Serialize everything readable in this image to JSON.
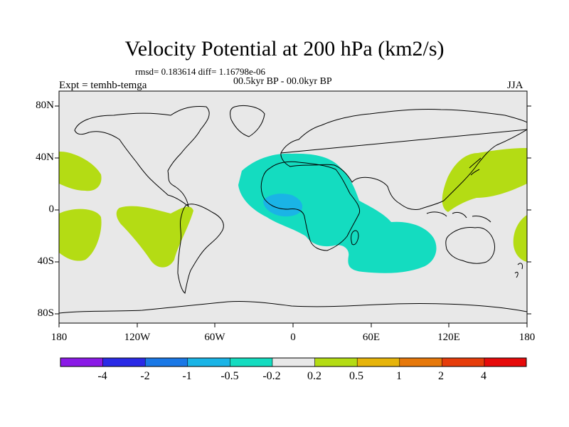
{
  "title": "Velocity Potential at 200 hPa (km2/s)",
  "stats": "rmsd= 0.183614 diff= 1.16798e-06",
  "period": "00.5kyr BP - 00.0kyr BP",
  "experiment": "Expt = temhb-temga",
  "season": "JJA",
  "lat_ticks": [
    "80N",
    "40N",
    "0",
    "40S",
    "80S"
  ],
  "lon_ticks": [
    "180",
    "120W",
    "60W",
    "0",
    "60E",
    "120E",
    "180"
  ],
  "colorbar": {
    "labels": [
      "-4",
      "-2",
      "-1",
      "-0.5",
      "-0.2",
      "0.2",
      "0.5",
      "1",
      "2",
      "4"
    ],
    "colors": [
      "#8a1ae6",
      "#2a2ae6",
      "#1a78e6",
      "#1ab4e6",
      "#14dcc0",
      "#e8e8e8",
      "#b4dc14",
      "#e6b40a",
      "#e6780a",
      "#e63c0a",
      "#e60a0a"
    ]
  },
  "colors": {
    "background": "#e8e8e8",
    "neg_weak": "#14dcc0",
    "neg_mid": "#1ab4e6",
    "pos_weak": "#b4dc14"
  }
}
